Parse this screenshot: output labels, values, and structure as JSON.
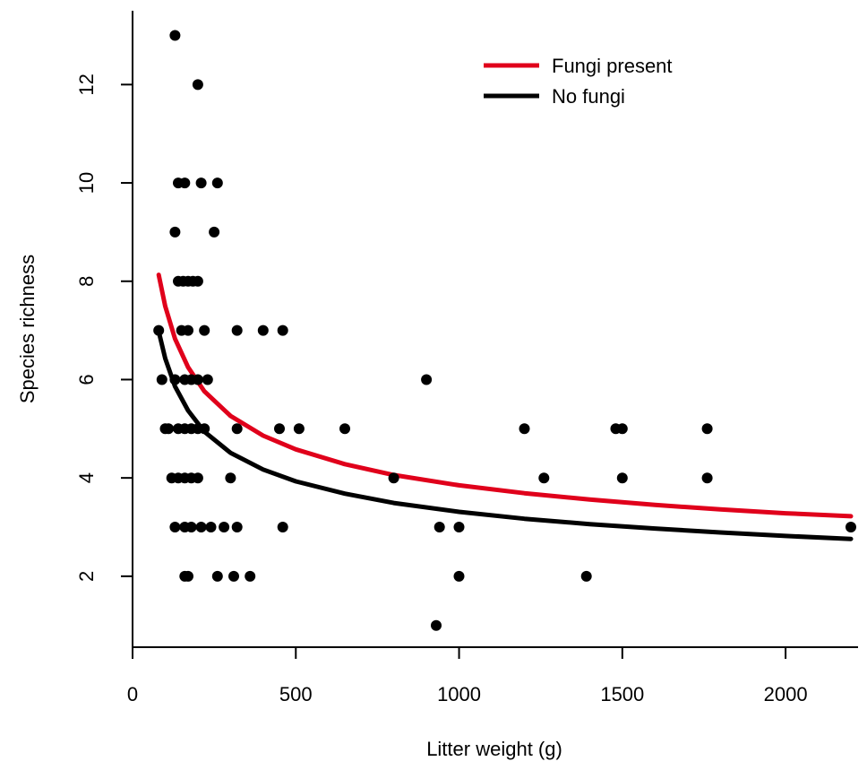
{
  "chart_data": {
    "type": "scatter",
    "xlabel": "Litter weight (g)",
    "ylabel": "Species richness",
    "xlim": [
      0,
      2200
    ],
    "ylim": [
      0.5,
      13.1
    ],
    "x_ticks": [
      0,
      500,
      1000,
      1500,
      2000
    ],
    "y_ticks": [
      2,
      4,
      6,
      8,
      10,
      12
    ],
    "x_tick_labels": [
      "0",
      "500",
      "1000",
      "1500",
      "2000"
    ],
    "y_tick_labels": [
      "2",
      "4",
      "6",
      "8",
      "10",
      "12"
    ],
    "grid": false,
    "legend": {
      "position": "top-right",
      "entries": [
        {
          "label": "Fungi present",
          "color": "#e0001b"
        },
        {
          "label": "No fungi",
          "color": "#000000"
        }
      ]
    },
    "points": [
      {
        "x": 130,
        "y": 13
      },
      {
        "x": 200,
        "y": 12
      },
      {
        "x": 140,
        "y": 10
      },
      {
        "x": 160,
        "y": 10
      },
      {
        "x": 210,
        "y": 10
      },
      {
        "x": 260,
        "y": 10
      },
      {
        "x": 130,
        "y": 9
      },
      {
        "x": 250,
        "y": 9
      },
      {
        "x": 140,
        "y": 8
      },
      {
        "x": 155,
        "y": 8
      },
      {
        "x": 170,
        "y": 8
      },
      {
        "x": 185,
        "y": 8
      },
      {
        "x": 200,
        "y": 8
      },
      {
        "x": 80,
        "y": 7
      },
      {
        "x": 150,
        "y": 7
      },
      {
        "x": 170,
        "y": 7
      },
      {
        "x": 220,
        "y": 7
      },
      {
        "x": 320,
        "y": 7
      },
      {
        "x": 400,
        "y": 7
      },
      {
        "x": 460,
        "y": 7
      },
      {
        "x": 90,
        "y": 6
      },
      {
        "x": 130,
        "y": 6
      },
      {
        "x": 160,
        "y": 6
      },
      {
        "x": 180,
        "y": 6
      },
      {
        "x": 200,
        "y": 6
      },
      {
        "x": 230,
        "y": 6
      },
      {
        "x": 900,
        "y": 6
      },
      {
        "x": 100,
        "y": 5
      },
      {
        "x": 110,
        "y": 5
      },
      {
        "x": 140,
        "y": 5
      },
      {
        "x": 160,
        "y": 5
      },
      {
        "x": 180,
        "y": 5
      },
      {
        "x": 200,
        "y": 5
      },
      {
        "x": 220,
        "y": 5
      },
      {
        "x": 320,
        "y": 5
      },
      {
        "x": 450,
        "y": 5
      },
      {
        "x": 510,
        "y": 5
      },
      {
        "x": 650,
        "y": 5
      },
      {
        "x": 1200,
        "y": 5
      },
      {
        "x": 1480,
        "y": 5
      },
      {
        "x": 1500,
        "y": 5
      },
      {
        "x": 1760,
        "y": 5
      },
      {
        "x": 120,
        "y": 4
      },
      {
        "x": 140,
        "y": 4
      },
      {
        "x": 160,
        "y": 4
      },
      {
        "x": 180,
        "y": 4
      },
      {
        "x": 200,
        "y": 4
      },
      {
        "x": 300,
        "y": 4
      },
      {
        "x": 800,
        "y": 4
      },
      {
        "x": 1260,
        "y": 4
      },
      {
        "x": 1500,
        "y": 4
      },
      {
        "x": 1760,
        "y": 4
      },
      {
        "x": 130,
        "y": 3
      },
      {
        "x": 160,
        "y": 3
      },
      {
        "x": 180,
        "y": 3
      },
      {
        "x": 210,
        "y": 3
      },
      {
        "x": 240,
        "y": 3
      },
      {
        "x": 280,
        "y": 3
      },
      {
        "x": 320,
        "y": 3
      },
      {
        "x": 460,
        "y": 3
      },
      {
        "x": 940,
        "y": 3
      },
      {
        "x": 1000,
        "y": 3
      },
      {
        "x": 2200,
        "y": 3
      },
      {
        "x": 160,
        "y": 2
      },
      {
        "x": 170,
        "y": 2
      },
      {
        "x": 260,
        "y": 2
      },
      {
        "x": 310,
        "y": 2
      },
      {
        "x": 360,
        "y": 2
      },
      {
        "x": 1000,
        "y": 2
      },
      {
        "x": 1390,
        "y": 2
      },
      {
        "x": 930,
        "y": 1
      }
    ],
    "series": [
      {
        "name": "Fungi present",
        "type": "line",
        "color": "#e0001b",
        "x": [
          80,
          100,
          130,
          170,
          220,
          300,
          400,
          500,
          650,
          800,
          1000,
          1200,
          1400,
          1600,
          1800,
          2000,
          2200
        ],
        "y": [
          8.13,
          7.49,
          6.83,
          6.25,
          5.76,
          5.26,
          4.86,
          4.58,
          4.28,
          4.06,
          3.85,
          3.69,
          3.56,
          3.45,
          3.36,
          3.28,
          3.22
        ]
      },
      {
        "name": "No fungi",
        "type": "line",
        "color": "#000000",
        "x": [
          80,
          100,
          130,
          170,
          220,
          300,
          400,
          500,
          650,
          800,
          1000,
          1200,
          1400,
          1600,
          1800,
          2000,
          2200
        ],
        "y": [
          6.98,
          6.43,
          5.86,
          5.37,
          4.94,
          4.51,
          4.17,
          3.93,
          3.68,
          3.49,
          3.31,
          3.17,
          3.06,
          2.97,
          2.89,
          2.82,
          2.76
        ]
      }
    ]
  }
}
